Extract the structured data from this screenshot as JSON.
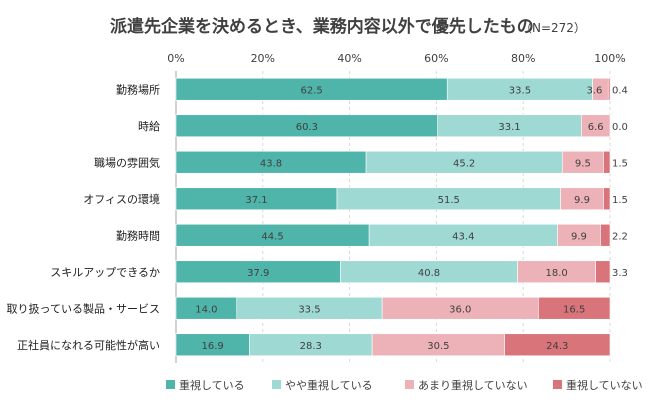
{
  "chart_data": {
    "type": "bar",
    "orientation": "horizontal-stacked-100",
    "title": "派遣先企業を決めるとき、業務内容以外で優先したもの",
    "note": "（N=272）",
    "x_ticks": [
      "0%",
      "20%",
      "40%",
      "60%",
      "80%",
      "100%"
    ],
    "xlim": [
      0,
      100
    ],
    "categories": [
      "勤務場所",
      "時給",
      "職場の雰囲気",
      "オフィスの環境",
      "勤務時間",
      "スキルアップできるか",
      "取り扱っている製品・サービス",
      "正社員になれる可能性が高い"
    ],
    "series": [
      {
        "name": "重視している",
        "color": "#4fb4a9",
        "values": [
          62.5,
          60.3,
          43.8,
          37.1,
          44.5,
          37.9,
          14.0,
          16.9
        ],
        "labels": [
          "62.5",
          "60.3",
          "43.8",
          "37.1",
          "44.5",
          "37.9",
          "14.0",
          "16.9"
        ]
      },
      {
        "name": "やや重視している",
        "color": "#9fd9d4",
        "values": [
          33.5,
          33.1,
          45.2,
          51.5,
          43.4,
          40.8,
          33.5,
          28.3
        ],
        "labels": [
          "33.5",
          "33.1",
          "45.2",
          "51.5",
          "43.4",
          "40.8",
          "33.5",
          "28.3"
        ]
      },
      {
        "name": "あまり重視していない",
        "color": "#ecb2b7",
        "values": [
          3.6,
          6.6,
          9.5,
          9.9,
          9.9,
          18.0,
          36.0,
          30.5
        ],
        "labels": [
          "3.6",
          "6.6",
          "9.5",
          "9.9",
          "9.9",
          "18.0",
          "36.0",
          "30.5"
        ]
      },
      {
        "name": "重視していない",
        "color": "#d9747b",
        "values": [
          0.4,
          0.0,
          1.5,
          1.5,
          2.2,
          3.3,
          16.5,
          24.3
        ],
        "labels": [
          "0.4",
          "0.0",
          "1.5",
          "1.5",
          "2.2",
          "3.3",
          "16.5",
          "24.3"
        ]
      }
    ],
    "legend": "bottom"
  }
}
